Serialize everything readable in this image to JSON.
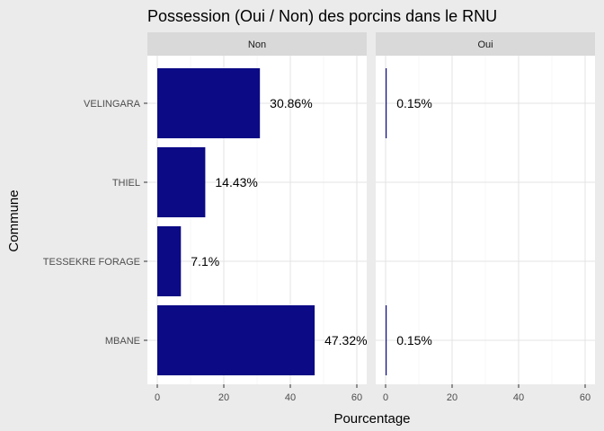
{
  "chart_data": {
    "type": "bar",
    "orientation": "horizontal",
    "title": "Possession (Oui / Non) des porcins dans le RNU",
    "xlabel": "Pourcentage",
    "ylabel": "Commune",
    "xlim": [
      0,
      60
    ],
    "xticks": [
      "0",
      "20",
      "40",
      "60"
    ],
    "categories": [
      "VELINGARA",
      "THIEL",
      "TESSEKRE FORAGE",
      "MBANE"
    ],
    "bar_color": "#0c0a85",
    "grid": true,
    "panels": [
      {
        "label": "Non",
        "values": [
          30.86,
          14.43,
          7.1,
          47.32
        ],
        "labels": [
          "30.86%",
          "14.43%",
          "7.1%",
          "47.32%"
        ]
      },
      {
        "label": "Oui",
        "values": [
          0.15,
          null,
          null,
          0.15
        ],
        "labels": [
          "0.15%",
          null,
          null,
          "0.15%"
        ]
      }
    ]
  }
}
